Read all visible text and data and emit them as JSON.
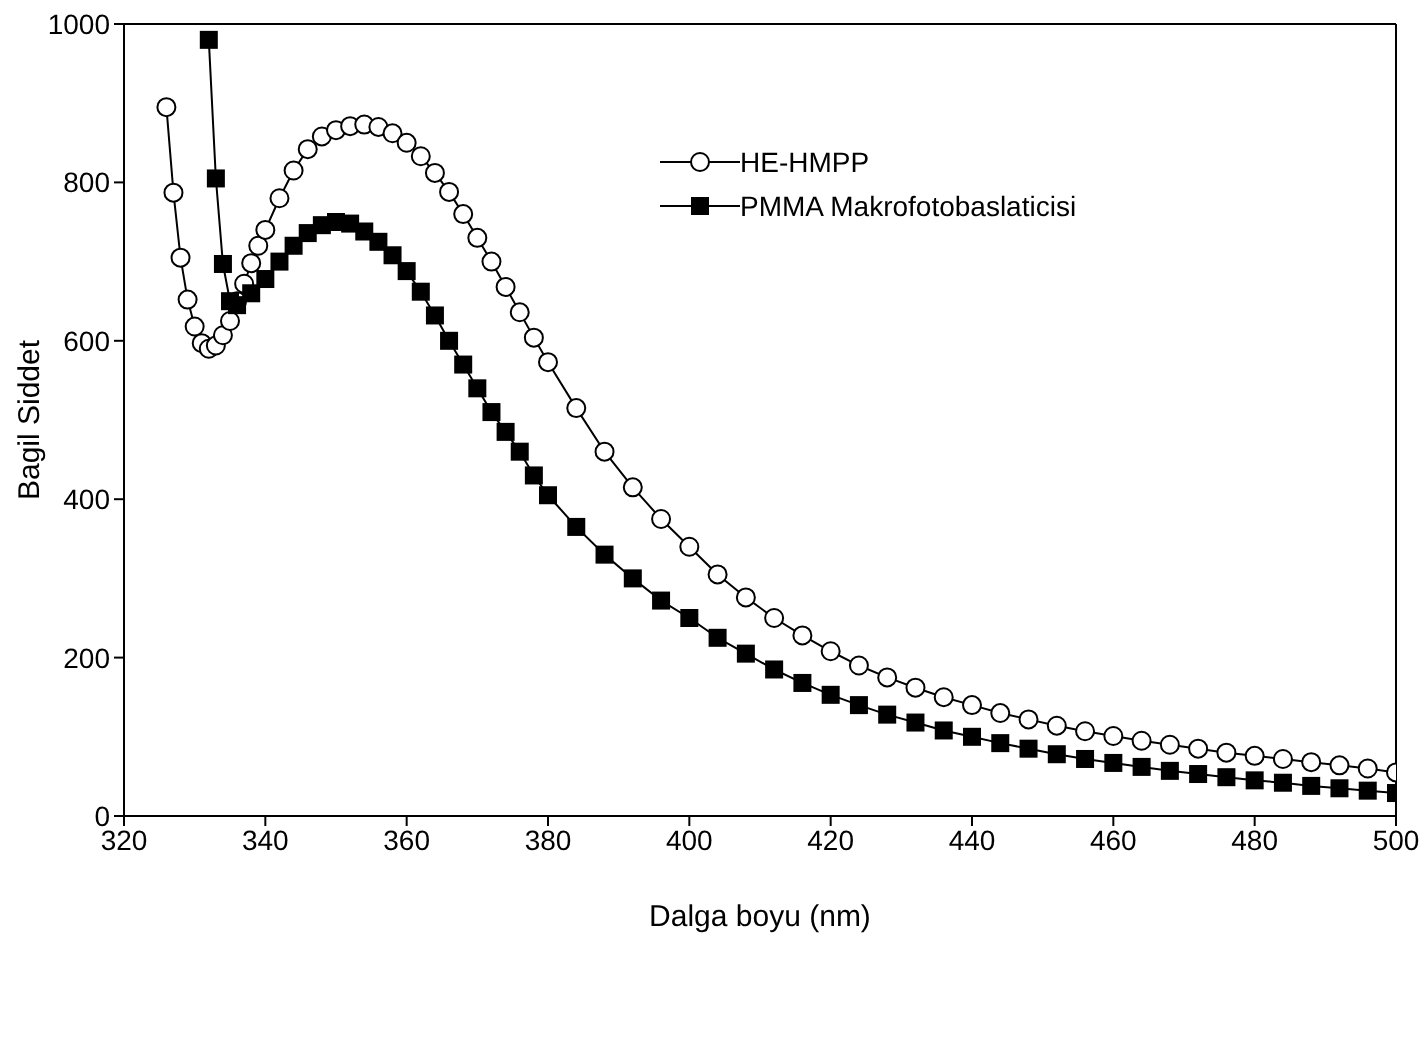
{
  "chart_data": {
    "type": "line",
    "xlabel": "Dalga boyu (nm)",
    "ylabel": "Bagil Siddet",
    "xlim": [
      320,
      500
    ],
    "xticks": [
      320,
      340,
      360,
      380,
      400,
      420,
      440,
      460,
      480,
      500
    ],
    "ylim": [
      0,
      1000
    ],
    "yticks": [
      0,
      200,
      400,
      600,
      800,
      1000
    ],
    "grid": false,
    "legend": "top right",
    "line_style": "solid",
    "series": [
      {
        "name": "HE-HMPP",
        "color": "#000000",
        "marker": "circle",
        "x": [
          326,
          327,
          328,
          329,
          330,
          331,
          332,
          333,
          334,
          335,
          336,
          337,
          338,
          339,
          340,
          342,
          344,
          346,
          348,
          350,
          352,
          354,
          356,
          358,
          360,
          362,
          364,
          366,
          368,
          370,
          372,
          374,
          376,
          378,
          380,
          384,
          388,
          392,
          396,
          400,
          404,
          408,
          412,
          416,
          420,
          424,
          428,
          432,
          436,
          440,
          444,
          448,
          452,
          456,
          460,
          464,
          468,
          472,
          476,
          480,
          484,
          488,
          492,
          496,
          500
        ],
        "values": [
          895,
          787,
          705,
          652,
          618,
          597,
          590,
          594,
          607,
          625,
          650,
          672,
          698,
          720,
          740,
          780,
          815,
          842,
          858,
          866,
          871,
          873,
          870,
          862,
          850,
          833,
          812,
          788,
          760,
          730,
          700,
          668,
          636,
          604,
          573,
          515,
          460,
          415,
          375,
          340,
          305,
          276,
          250,
          228,
          208,
          190,
          175,
          162,
          150,
          140,
          130,
          122,
          114,
          107,
          101,
          95,
          90,
          85,
          80,
          76,
          72,
          68,
          64,
          60,
          55
        ]
      },
      {
        "name": "PMMA Makrofotobaslaticisi",
        "color": "#000000",
        "marker": "square",
        "x": [
          332,
          333,
          334,
          335,
          336,
          338,
          340,
          342,
          344,
          346,
          348,
          350,
          352,
          354,
          356,
          358,
          360,
          362,
          364,
          366,
          368,
          370,
          372,
          374,
          376,
          378,
          380,
          384,
          388,
          392,
          396,
          400,
          404,
          408,
          412,
          416,
          420,
          424,
          428,
          432,
          436,
          440,
          444,
          448,
          452,
          456,
          460,
          464,
          468,
          472,
          476,
          480,
          484,
          488,
          492,
          496,
          500
        ],
        "values": [
          980,
          805,
          697,
          650,
          645,
          660,
          678,
          700,
          720,
          736,
          746,
          750,
          748,
          738,
          725,
          708,
          688,
          662,
          632,
          600,
          570,
          540,
          510,
          485,
          460,
          430,
          405,
          365,
          330,
          300,
          272,
          250,
          225,
          205,
          185,
          168,
          153,
          140,
          128,
          118,
          108,
          100,
          92,
          85,
          78,
          72,
          67,
          62,
          57,
          53,
          49,
          45,
          42,
          38,
          35,
          32,
          29
        ]
      }
    ]
  }
}
